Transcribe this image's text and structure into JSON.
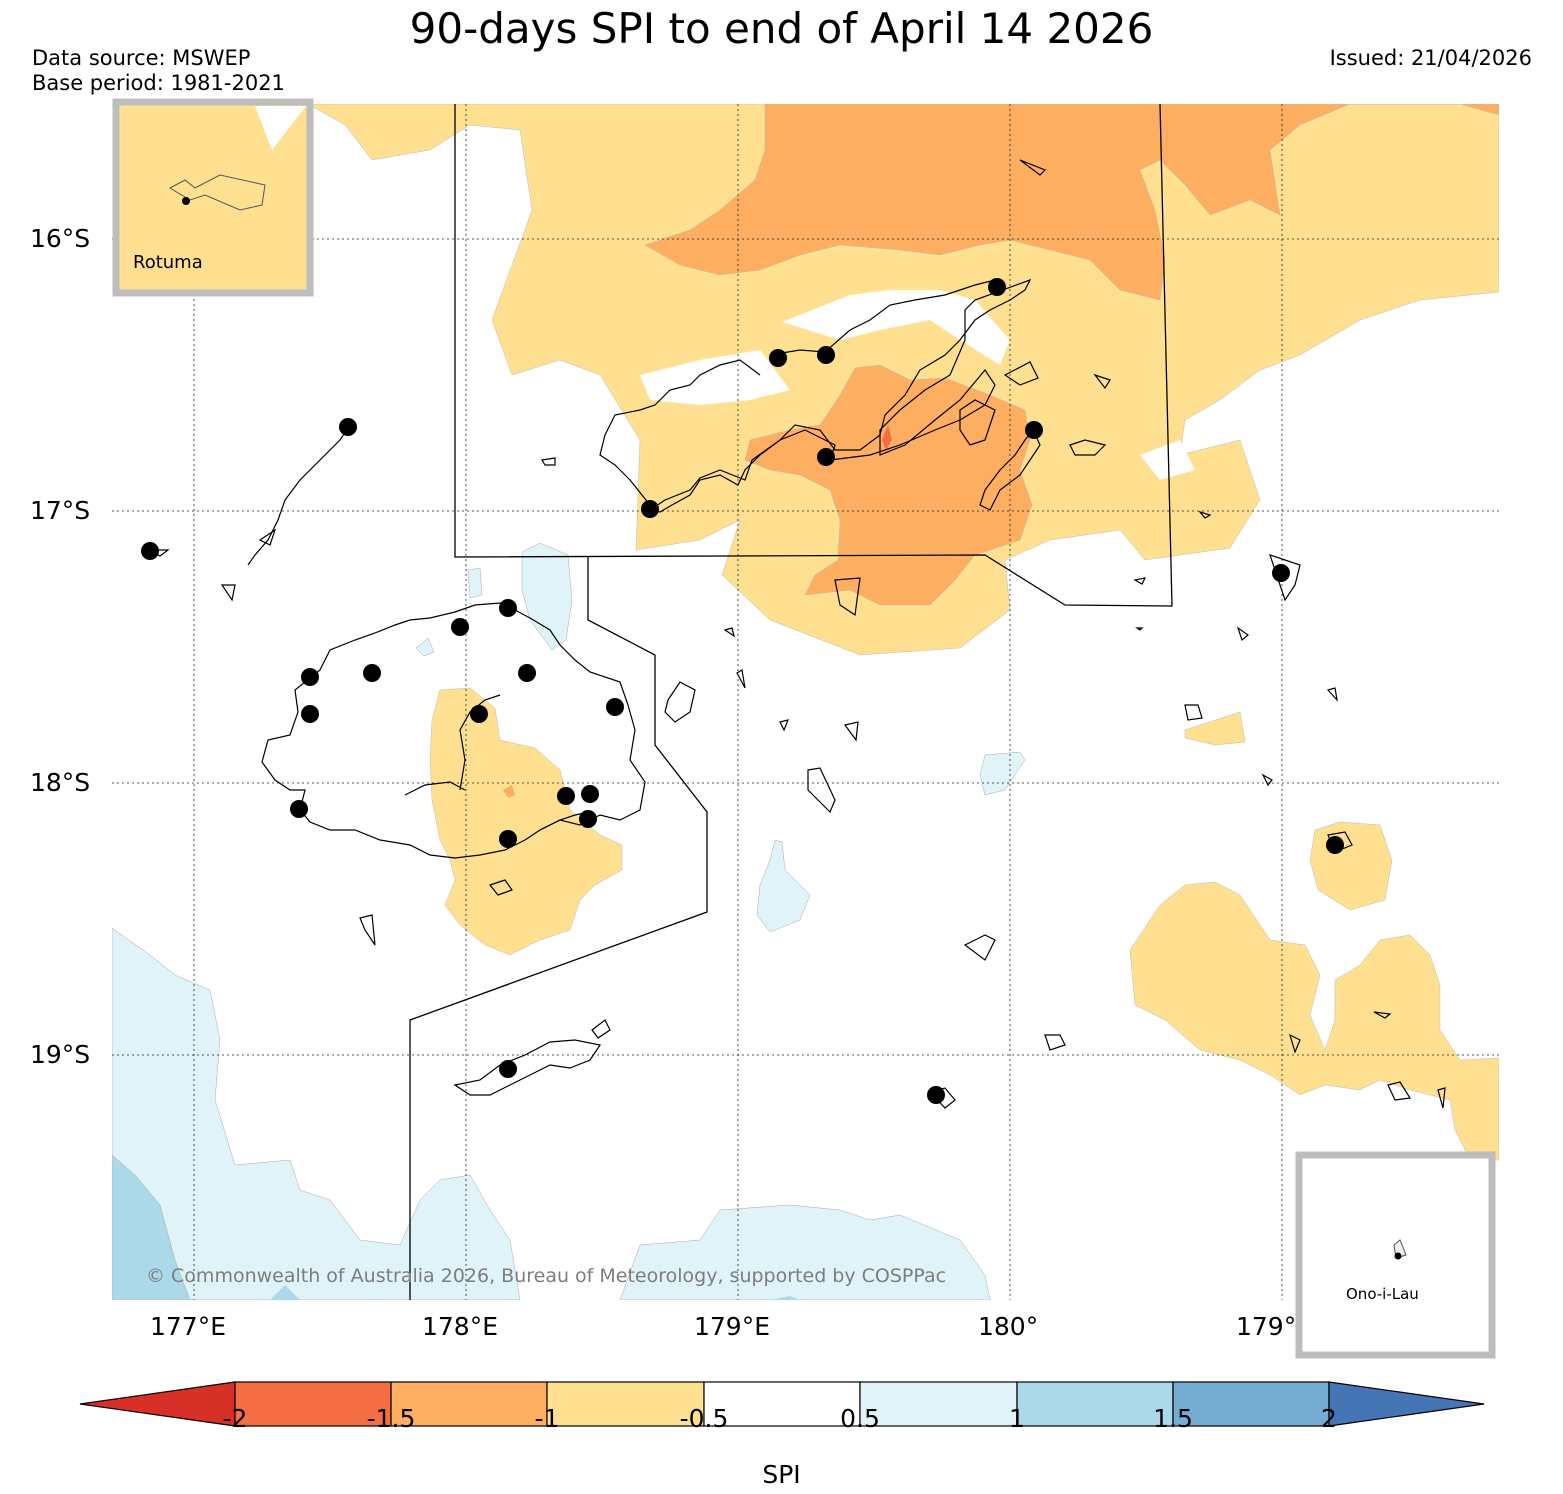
{
  "header": {
    "title": "90-days SPI to end of April 14 2026",
    "data_source": "Data source: MSWEP",
    "base_period": "Base period: 1981-2021",
    "issued": "Issued: 21/04/2026"
  },
  "map": {
    "lat_labels": [
      "16°S",
      "17°S",
      "18°S",
      "19°S"
    ],
    "lon_labels": [
      "177°E",
      "178°E",
      "179°E",
      "180°",
      "179°"
    ],
    "inset_rotuma": "Rotuma",
    "inset_ono": "Ono-i-Lau",
    "copyright": "© Commonwealth of Australia 2026, Bureau of Meteorology, supported by COSPPac"
  },
  "colorbar": {
    "title": "SPI",
    "ticks": [
      "-2",
      "-1.5",
      "-1",
      "-0.5",
      "0.5",
      "1",
      "1.5",
      "2"
    ],
    "colors": {
      "lt_-2": "#d73027",
      "-2_-1.5": "#f46d43",
      "-1.5_-1": "#fdae61",
      "-1_-0.5": "#fee090",
      "-0.5_0.5": "#ffffff",
      "0.5_1": "#e0f3f8",
      "1_1.5": "#abd9e9",
      "1.5_2": "#74add1",
      "gt_2": "#4575b4"
    }
  }
}
